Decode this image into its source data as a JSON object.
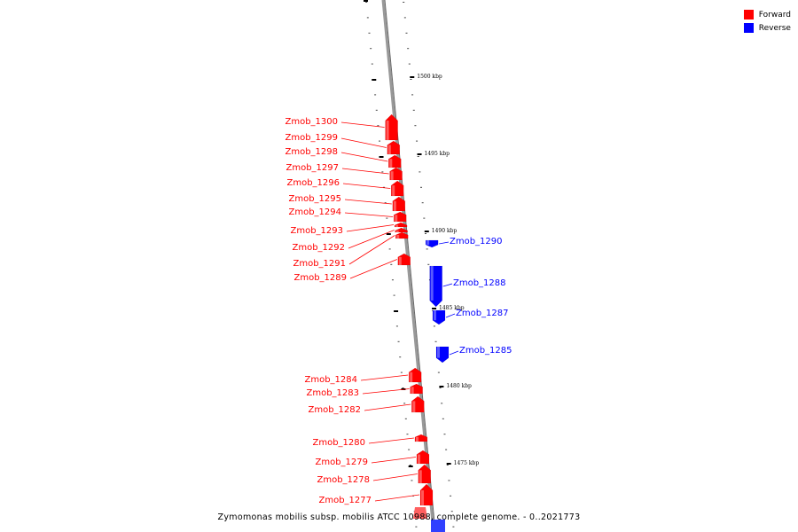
{
  "caption": "Zymomonas mobilis subsp. mobilis ATCC 10988, complete genome. - 0..2021773",
  "legend": {
    "forward": {
      "label": "Forward",
      "color": "#ff0000"
    },
    "reverse": {
      "label": "Reverse",
      "color": "#0000ff"
    }
  },
  "colors": {
    "forward": "#ff0000",
    "reverse": "#0000ff",
    "backbone": "#999999"
  },
  "tick_labels": [
    "1500 kbp",
    "1495 kbp",
    "1490 kbp",
    "1485 kbp",
    "1480 kbp",
    "1475 kbp"
  ],
  "genes": [
    {
      "name": "Zmob_1300",
      "strand": "forward"
    },
    {
      "name": "Zmob_1299",
      "strand": "forward"
    },
    {
      "name": "Zmob_1298",
      "strand": "forward"
    },
    {
      "name": "Zmob_1297",
      "strand": "forward"
    },
    {
      "name": "Zmob_1296",
      "strand": "forward"
    },
    {
      "name": "Zmob_1295",
      "strand": "forward"
    },
    {
      "name": "Zmob_1294",
      "strand": "forward"
    },
    {
      "name": "Zmob_1293",
      "strand": "forward"
    },
    {
      "name": "Zmob_1292",
      "strand": "forward"
    },
    {
      "name": "Zmob_1291",
      "strand": "forward"
    },
    {
      "name": "Zmob_1290",
      "strand": "reverse"
    },
    {
      "name": "Zmob_1289",
      "strand": "forward"
    },
    {
      "name": "Zmob_1288",
      "strand": "reverse"
    },
    {
      "name": "Zmob_1287",
      "strand": "reverse"
    },
    {
      "name": "Zmob_1285",
      "strand": "reverse"
    },
    {
      "name": "Zmob_1284",
      "strand": "forward"
    },
    {
      "name": "Zmob_1283",
      "strand": "forward"
    },
    {
      "name": "Zmob_1282",
      "strand": "forward"
    },
    {
      "name": "Zmob_1280",
      "strand": "forward"
    },
    {
      "name": "Zmob_1279",
      "strand": "forward"
    },
    {
      "name": "Zmob_1278",
      "strand": "forward"
    },
    {
      "name": "Zmob_1277",
      "strand": "forward"
    }
  ]
}
